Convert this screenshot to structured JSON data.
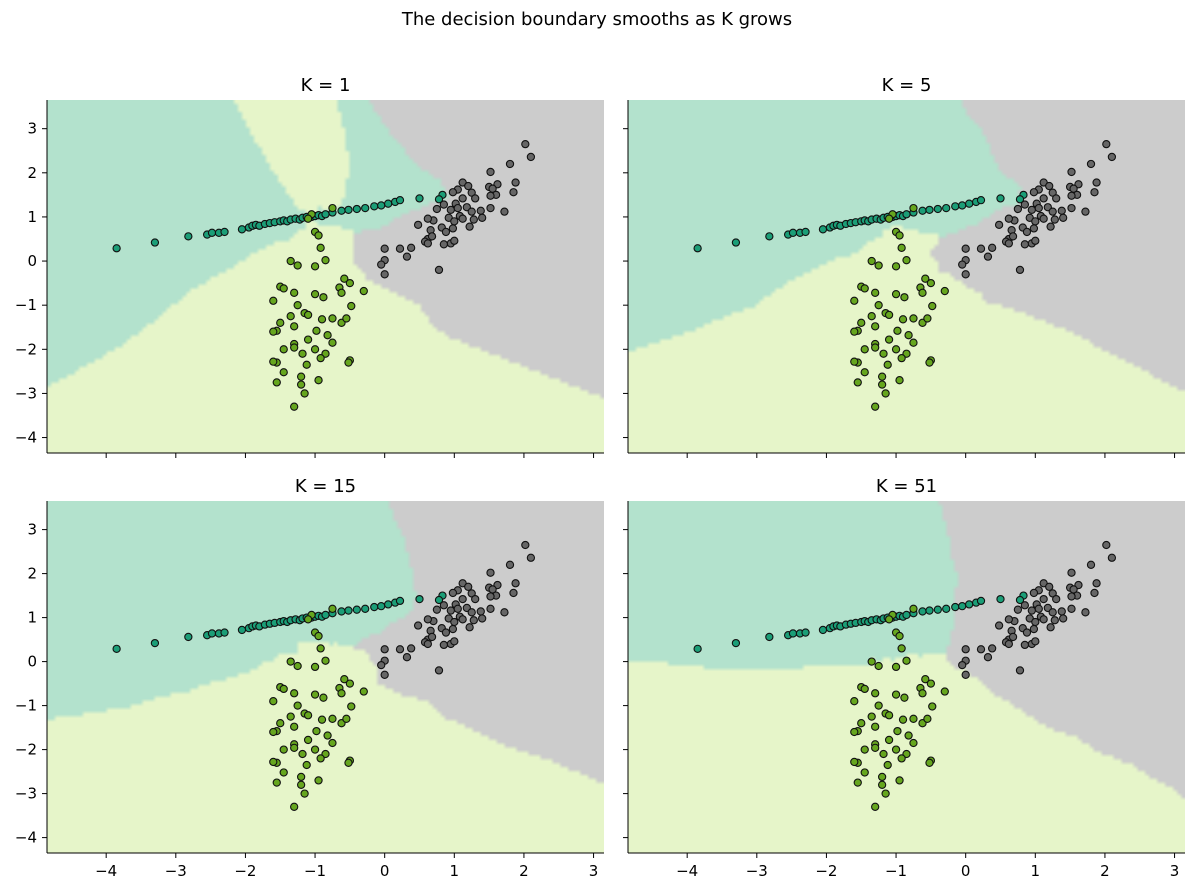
{
  "suptitle": "The decision boundary smooths as K grows",
  "chart_data": [
    {
      "type": "scatter",
      "title": "K = 1",
      "k": 1
    },
    {
      "type": "scatter",
      "title": "K = 5",
      "k": 5
    },
    {
      "type": "scatter",
      "title": "K = 15",
      "k": 15
    },
    {
      "type": "scatter",
      "title": "K = 51",
      "k": 51
    }
  ],
  "axes": {
    "xlim": [
      -4.85,
      3.15
    ],
    "ylim": [
      -4.35,
      3.65
    ],
    "xticks": [
      -4,
      -3,
      -2,
      -1,
      0,
      1,
      2,
      3
    ],
    "xtick_labels": [
      "−4",
      "−3",
      "−2",
      "−1",
      "0",
      "1",
      "2",
      "3"
    ],
    "yticks": [
      -4,
      -3,
      -2,
      -1,
      0,
      1,
      2,
      3
    ],
    "ytick_labels": [
      "−4",
      "−3",
      "−2",
      "−1",
      "0",
      "1",
      "2",
      "3"
    ],
    "shared_x": true,
    "shared_y": true,
    "grid": false
  },
  "colors": {
    "region_teal": "#b3e2cd",
    "region_yellow": "#e6f5c9",
    "region_gray": "#cccccc",
    "point_teal": "#1b9e77",
    "point_green": "#66a61e",
    "point_gray": "#666666",
    "point_edge": "#111111"
  },
  "points": {
    "teal": [
      [
        -3.85,
        0.29
      ],
      [
        -3.3,
        0.42
      ],
      [
        -2.82,
        0.56
      ],
      [
        -2.55,
        0.6
      ],
      [
        -2.48,
        0.64
      ],
      [
        -2.38,
        0.64
      ],
      [
        -2.3,
        0.66
      ],
      [
        -2.05,
        0.72
      ],
      [
        -1.95,
        0.76
      ],
      [
        -1.9,
        0.8
      ],
      [
        -1.85,
        0.82
      ],
      [
        -1.8,
        0.8
      ],
      [
        -1.72,
        0.84
      ],
      [
        -1.65,
        0.86
      ],
      [
        -1.58,
        0.88
      ],
      [
        -1.5,
        0.9
      ],
      [
        -1.45,
        0.92
      ],
      [
        -1.4,
        0.9
      ],
      [
        -1.35,
        0.94
      ],
      [
        -1.28,
        0.96
      ],
      [
        -1.22,
        0.94
      ],
      [
        -1.18,
        0.98
      ],
      [
        -1.12,
        1.0
      ],
      [
        -1.05,
        1.0
      ],
      [
        -1.0,
        1.02
      ],
      [
        -0.95,
        1.04
      ],
      [
        -0.9,
        1.02
      ],
      [
        -0.85,
        1.06
      ],
      [
        -0.75,
        1.1
      ],
      [
        -0.62,
        1.14
      ],
      [
        -0.52,
        1.16
      ],
      [
        -0.4,
        1.18
      ],
      [
        -0.28,
        1.2
      ],
      [
        -0.15,
        1.24
      ],
      [
        -0.05,
        1.26
      ],
      [
        0.05,
        1.3
      ],
      [
        0.15,
        1.34
      ],
      [
        0.22,
        1.38
      ],
      [
        0.5,
        1.42
      ],
      [
        0.83,
        1.5
      ],
      [
        0.78,
        1.4
      ]
    ],
    "green": [
      [
        -0.75,
        1.2
      ],
      [
        -1.05,
        1.06
      ],
      [
        -1.1,
        0.96
      ],
      [
        -1.0,
        0.66
      ],
      [
        -0.95,
        0.58
      ],
      [
        -0.92,
        0.3
      ],
      [
        -1.35,
        0.0
      ],
      [
        -1.25,
        -0.1
      ],
      [
        -1.0,
        -0.12
      ],
      [
        -0.85,
        0.02
      ],
      [
        -0.58,
        -0.4
      ],
      [
        -0.5,
        -0.5
      ],
      [
        -0.65,
        -0.6
      ],
      [
        -0.62,
        -0.72
      ],
      [
        -0.3,
        -0.68
      ],
      [
        -0.48,
        -1.02
      ],
      [
        -1.5,
        -0.58
      ],
      [
        -1.45,
        -0.62
      ],
      [
        -1.6,
        -0.9
      ],
      [
        -1.3,
        -0.72
      ],
      [
        -1.0,
        -0.75
      ],
      [
        -0.88,
        -0.82
      ],
      [
        -1.25,
        -1.0
      ],
      [
        -1.15,
        -1.18
      ],
      [
        -1.35,
        -1.25
      ],
      [
        -1.5,
        -1.4
      ],
      [
        -1.55,
        -1.58
      ],
      [
        -1.6,
        -1.6
      ],
      [
        -1.1,
        -1.22
      ],
      [
        -0.9,
        -1.32
      ],
      [
        -0.75,
        -1.3
      ],
      [
        -0.62,
        -1.4
      ],
      [
        -0.55,
        -1.3
      ],
      [
        -1.3,
        -1.48
      ],
      [
        -0.98,
        -1.58
      ],
      [
        -0.82,
        -1.68
      ],
      [
        -0.75,
        -1.85
      ],
      [
        -1.1,
        -1.78
      ],
      [
        -1.3,
        -1.88
      ],
      [
        -1.3,
        -1.96
      ],
      [
        -1.45,
        -2.0
      ],
      [
        -1.18,
        -2.1
      ],
      [
        -1.0,
        -2.0
      ],
      [
        -1.55,
        -2.3
      ],
      [
        -1.6,
        -2.28
      ],
      [
        -1.12,
        -2.35
      ],
      [
        -0.85,
        -2.1
      ],
      [
        -0.92,
        -2.2
      ],
      [
        -0.5,
        -2.25
      ],
      [
        -0.52,
        -2.3
      ],
      [
        -1.45,
        -2.52
      ],
      [
        -1.55,
        -2.75
      ],
      [
        -1.2,
        -2.62
      ],
      [
        -0.95,
        -2.7
      ],
      [
        -1.2,
        -2.8
      ],
      [
        -1.3,
        -3.3
      ],
      [
        -1.15,
        -3.0
      ]
    ],
    "gray": [
      [
        2.02,
        2.65
      ],
      [
        2.1,
        2.36
      ],
      [
        1.8,
        2.2
      ],
      [
        1.52,
        2.02
      ],
      [
        1.88,
        1.78
      ],
      [
        1.62,
        1.74
      ],
      [
        1.12,
        1.78
      ],
      [
        1.05,
        1.62
      ],
      [
        0.98,
        1.56
      ],
      [
        1.2,
        1.7
      ],
      [
        1.25,
        1.55
      ],
      [
        1.5,
        1.68
      ],
      [
        1.55,
        1.64
      ],
      [
        1.6,
        1.5
      ],
      [
        1.85,
        1.56
      ],
      [
        1.52,
        1.48
      ],
      [
        1.3,
        1.42
      ],
      [
        1.12,
        1.42
      ],
      [
        1.02,
        1.3
      ],
      [
        0.85,
        1.28
      ],
      [
        0.75,
        1.18
      ],
      [
        0.95,
        1.16
      ],
      [
        1.05,
        1.2
      ],
      [
        1.18,
        1.22
      ],
      [
        1.25,
        1.12
      ],
      [
        1.38,
        1.14
      ],
      [
        1.52,
        1.2
      ],
      [
        1.72,
        1.12
      ],
      [
        1.08,
        1.02
      ],
      [
        0.92,
        0.98
      ],
      [
        0.7,
        0.92
      ],
      [
        1.0,
        0.9
      ],
      [
        1.12,
        0.96
      ],
      [
        1.28,
        0.94
      ],
      [
        1.4,
        0.98
      ],
      [
        0.62,
        0.96
      ],
      [
        0.48,
        0.82
      ],
      [
        0.82,
        0.76
      ],
      [
        0.98,
        0.74
      ],
      [
        1.22,
        0.78
      ],
      [
        0.66,
        0.7
      ],
      [
        0.88,
        0.66
      ],
      [
        0.62,
        0.5
      ],
      [
        0.58,
        0.44
      ],
      [
        0.95,
        0.4
      ],
      [
        1.0,
        0.46
      ],
      [
        0.85,
        0.38
      ],
      [
        0.38,
        0.3
      ],
      [
        0.62,
        0.4
      ],
      [
        0.68,
        0.56
      ],
      [
        0.22,
        0.28
      ],
      [
        0.0,
        0.28
      ],
      [
        0.32,
        0.1
      ],
      [
        0.0,
        0.02
      ],
      [
        -0.05,
        -0.08
      ],
      [
        0.78,
        -0.2
      ],
      [
        0.0,
        -0.3
      ]
    ]
  }
}
